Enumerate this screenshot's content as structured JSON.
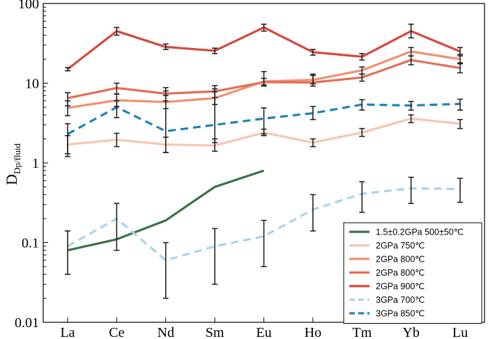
{
  "chart_data": {
    "type": "line",
    "title": "",
    "xlabel": "",
    "ylabel": "D",
    "ylabel_subscript": "Dp/fluid",
    "yscale": "log",
    "ylim": [
      0.01,
      100
    ],
    "y_ticks": [
      0.01,
      0.1,
      1,
      10,
      100
    ],
    "y_tick_labels": [
      "0.01",
      "0.1",
      "1",
      "10",
      "100"
    ],
    "categories": [
      "La",
      "Ce",
      "Nd",
      "Sm",
      "Eu",
      "Ho",
      "Tm",
      "Yb",
      "Lu"
    ],
    "legend_position": "bottom-right",
    "series": [
      {
        "name": "1.5±0.2GPa 500±50℃",
        "color": "#3a7148",
        "dash": "solid",
        "values": [
          0.08,
          0.11,
          0.19,
          0.5,
          0.8,
          null,
          null,
          null,
          null
        ],
        "err_low": [
          null,
          null,
          null,
          null,
          null,
          null,
          null,
          null,
          null
        ],
        "err_high": [
          null,
          null,
          null,
          null,
          null,
          null,
          null,
          null,
          null
        ]
      },
      {
        "name": "2GPa 750℃",
        "color": "#f7c6b3",
        "dash": "solid",
        "values": [
          1.7,
          1.95,
          1.7,
          1.65,
          2.4,
          1.8,
          2.4,
          3.6,
          3.1
        ],
        "err_low": [
          1.3,
          1.6,
          1.35,
          1.4,
          2.2,
          1.6,
          2.15,
          3.2,
          2.7
        ],
        "err_high": [
          2.2,
          2.35,
          2.1,
          2.0,
          2.65,
          2.0,
          2.7,
          4.0,
          3.5
        ]
      },
      {
        "name": "2GPa 800℃",
        "color": "#f0906e",
        "dash": "solid",
        "values": [
          4.9,
          6.1,
          5.8,
          6.5,
          10.5,
          11.0,
          14.5,
          25.0,
          20.0
        ],
        "err_low": [
          3.9,
          5.1,
          4.8,
          5.4,
          9.5,
          9.8,
          13.0,
          22.0,
          17.5
        ],
        "err_high": [
          6.0,
          7.3,
          7.0,
          7.8,
          11.5,
          12.5,
          16.0,
          28.0,
          23.0
        ]
      },
      {
        "name": "2GPa 800℃",
        "color": "#e46d57",
        "dash": "solid",
        "values": [
          6.5,
          8.7,
          7.4,
          7.9,
          10.3,
          10.2,
          11.8,
          19.5,
          15.5
        ],
        "err_low": [
          5.2,
          7.3,
          6.0,
          6.6,
          9.2,
          9.2,
          10.6,
          17.0,
          13.5
        ],
        "err_high": [
          7.6,
          10.0,
          8.8,
          9.3,
          14.0,
          13.0,
          13.0,
          22.0,
          18.0
        ]
      },
      {
        "name": "2GPa 900℃",
        "color": "#d6473b",
        "dash": "solid",
        "values": [
          15.0,
          45.0,
          28.5,
          25.5,
          50.0,
          24.5,
          21.5,
          45.0,
          25.0
        ],
        "err_low": [
          14.3,
          40.0,
          26.5,
          23.5,
          45.0,
          22.5,
          19.5,
          37.0,
          22.0
        ],
        "err_high": [
          15.7,
          50.0,
          31.0,
          27.5,
          55.0,
          26.5,
          23.5,
          55.0,
          28.0
        ]
      },
      {
        "name": "3GPa 700℃",
        "color": "#a9d3ee",
        "dash": "dashed",
        "values": [
          0.09,
          0.2,
          0.06,
          0.09,
          0.12,
          0.26,
          0.41,
          0.48,
          0.47
        ],
        "err_low": [
          0.04,
          0.08,
          0.02,
          0.03,
          0.05,
          0.14,
          0.24,
          0.31,
          0.32
        ],
        "err_high": [
          0.14,
          0.31,
          0.1,
          0.15,
          0.19,
          0.4,
          0.58,
          0.66,
          0.64
        ]
      },
      {
        "name": "3GPa 850℃",
        "color": "#1c84b6",
        "dash": "dashed",
        "values": [
          2.3,
          5.0,
          2.5,
          3.0,
          3.6,
          4.2,
          5.4,
          5.25,
          5.5
        ],
        "err_low": [
          1.2,
          3.7,
          1.35,
          1.8,
          2.3,
          3.5,
          4.6,
          4.6,
          4.6
        ],
        "err_high": [
          3.1,
          6.0,
          8.0,
          8.5,
          4.9,
          5.1,
          6.2,
          5.9,
          6.3
        ]
      }
    ]
  }
}
